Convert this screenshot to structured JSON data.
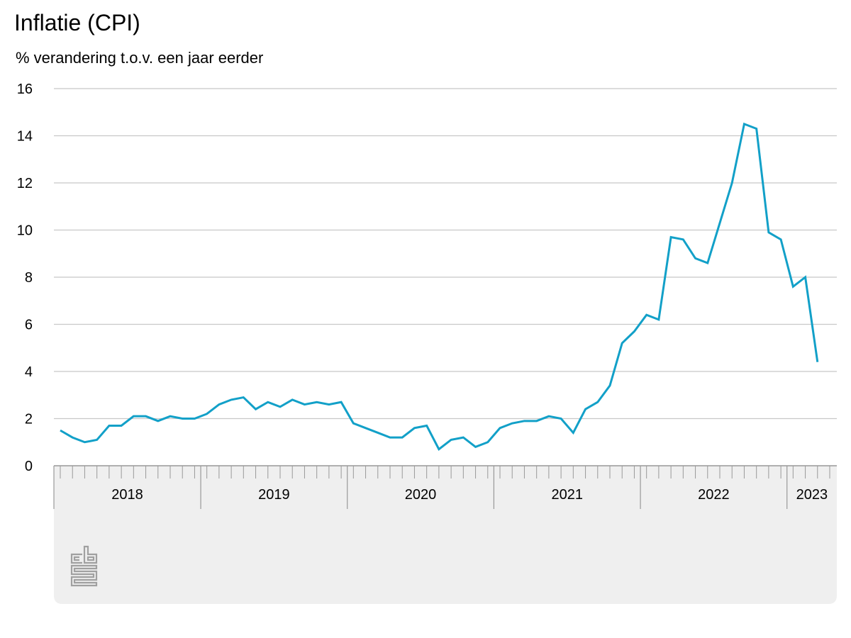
{
  "title": "Inflatie (CPI)",
  "subtitle": "% verandering t.o.v. een jaar eerder",
  "colors": {
    "series": "#12a0c8",
    "grid": "#c8c8c8",
    "axis_band": "#efefef",
    "tick": "#999999",
    "logo": "#a0a0a0"
  },
  "logo": {
    "icon": "cbs-logo-icon"
  },
  "chart_data": {
    "type": "line",
    "title": "Inflatie (CPI)",
    "ylabel": "% verandering t.o.v. een jaar eerder",
    "xlabel": "",
    "ylim": [
      0,
      16
    ],
    "yticks": [
      0,
      2,
      4,
      6,
      8,
      10,
      12,
      14,
      16
    ],
    "grid": true,
    "legend": "none",
    "x_start": "2018-01",
    "x_end": "2023-04",
    "years": [
      {
        "label": "2018",
        "start": "2018-01",
        "end": "2018-12"
      },
      {
        "label": "2019",
        "start": "2019-01",
        "end": "2019-12"
      },
      {
        "label": "2020",
        "start": "2020-01",
        "end": "2020-12"
      },
      {
        "label": "2021",
        "start": "2021-01",
        "end": "2021-12"
      },
      {
        "label": "2022",
        "start": "2022-01",
        "end": "2022-12"
      },
      {
        "label": "2023",
        "start": "2023-01",
        "end": "2023-04"
      }
    ],
    "series": [
      {
        "x": [
          "2018-01",
          "2018-02",
          "2018-03",
          "2018-04",
          "2018-05",
          "2018-06",
          "2018-07",
          "2018-08",
          "2018-09",
          "2018-10",
          "2018-11",
          "2018-12",
          "2019-01",
          "2019-02",
          "2019-03",
          "2019-04",
          "2019-05",
          "2019-06",
          "2019-07",
          "2019-08",
          "2019-09",
          "2019-10",
          "2019-11",
          "2019-12",
          "2020-01",
          "2020-02",
          "2020-03",
          "2020-04",
          "2020-05",
          "2020-06",
          "2020-07",
          "2020-08",
          "2020-09",
          "2020-10",
          "2020-11",
          "2020-12",
          "2021-01",
          "2021-02",
          "2021-03",
          "2021-04",
          "2021-05",
          "2021-06",
          "2021-07",
          "2021-08",
          "2021-09",
          "2021-10",
          "2021-11",
          "2021-12",
          "2022-01",
          "2022-02",
          "2022-03",
          "2022-04",
          "2022-05",
          "2022-06",
          "2022-07",
          "2022-08",
          "2022-09",
          "2022-10",
          "2022-11",
          "2022-12",
          "2023-01",
          "2023-02",
          "2023-03",
          "2023-04"
        ],
        "values": [
          1.5,
          1.2,
          1.0,
          1.1,
          1.7,
          1.7,
          2.1,
          2.1,
          1.9,
          2.1,
          2.0,
          2.0,
          2.2,
          2.6,
          2.8,
          2.9,
          2.4,
          2.7,
          2.5,
          2.8,
          2.6,
          2.7,
          2.6,
          2.7,
          1.8,
          1.6,
          1.4,
          1.2,
          1.2,
          1.6,
          1.7,
          0.7,
          1.1,
          1.2,
          0.8,
          1.0,
          1.6,
          1.8,
          1.9,
          1.9,
          2.1,
          2.0,
          1.4,
          2.4,
          2.7,
          3.4,
          5.2,
          5.7,
          6.4,
          6.2,
          9.7,
          9.6,
          8.8,
          8.6,
          10.3,
          12.0,
          14.5,
          14.3,
          9.9,
          9.6,
          7.6,
          8.0,
          4.4,
          null
        ]
      }
    ]
  }
}
